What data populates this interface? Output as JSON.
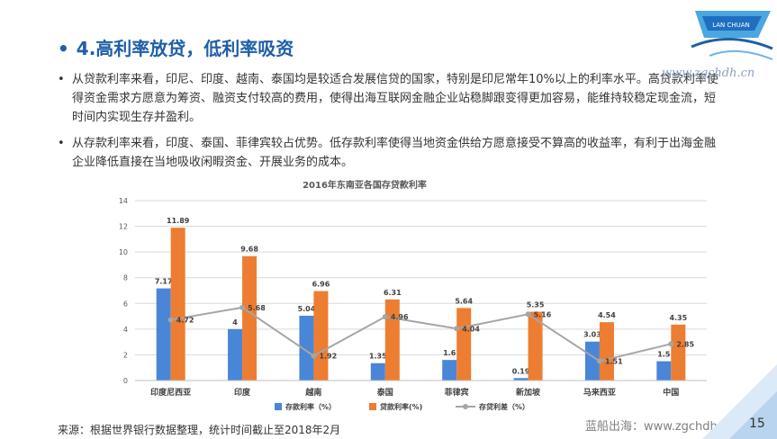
{
  "slide": {
    "title": "4.高利率放贷，低利率吸资",
    "bullets": [
      "从贷款利率来看，印尼、印度、越南、泰国均是较适合发展信贷的国家，特别是印尼常年10%以上的利率水平。高贷款利率使得资金需求方愿意为筹资、融资支付较高的费用，使得出海互联网金融企业站稳脚跟变得更加容易，能维持较稳定现金流，短时间内实现生存并盈利。",
      "从存款利率来看，印度、泰国、菲律宾较占优势。低存款利率使得当地资金供给方愿意接受不算高的收益率，有利于出海金融企业降低直接在当地吸收闲暇资金、开展业务的成本。"
    ],
    "watermark": "www.zgchdh.cn",
    "source": "来源：根据世界银行数据整理，统计时间截止至2018年2月",
    "footer_brand": "蓝船出海：www.zgchdh.cn",
    "page_number": "15"
  },
  "chart_data": {
    "type": "bar",
    "title": "2016年东南亚各国存贷款利率",
    "categories": [
      "印度尼西亚",
      "印度",
      "越南",
      "泰国",
      "菲律宾",
      "新加坡",
      "马来西亚",
      "中国"
    ],
    "series": [
      {
        "name": "存款利率（%）",
        "type": "bar",
        "color": "#4a86d8",
        "values": [
          7.17,
          4,
          5.04,
          1.35,
          1.6,
          0.19,
          3.03,
          1.5
        ]
      },
      {
        "name": "贷款利率(%)",
        "type": "bar",
        "color": "#ed7d31",
        "values": [
          11.89,
          9.68,
          6.96,
          6.31,
          5.64,
          5.35,
          4.54,
          4.35
        ]
      },
      {
        "name": "存贷利差（%）",
        "type": "line",
        "color": "#a5a5a5",
        "values": [
          4.72,
          5.68,
          1.92,
          4.96,
          4.04,
          5.16,
          1.51,
          2.85
        ]
      }
    ],
    "ylim": [
      0,
      14
    ],
    "yticks": [
      0,
      2,
      4,
      6,
      8,
      10,
      12,
      14
    ],
    "grid": true,
    "legend": "bottom"
  }
}
